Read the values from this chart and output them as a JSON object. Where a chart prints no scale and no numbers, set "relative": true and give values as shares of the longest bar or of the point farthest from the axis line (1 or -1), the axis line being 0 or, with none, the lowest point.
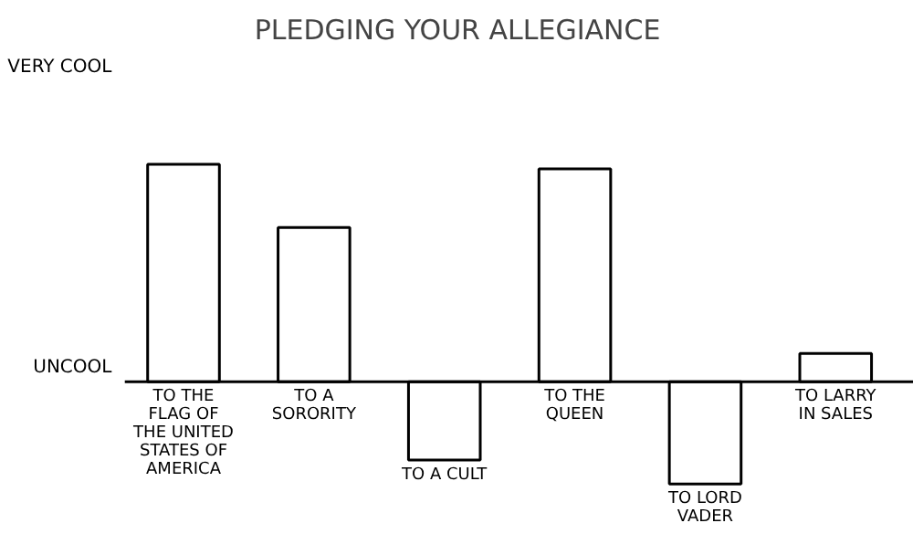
{
  "chart_data": {
    "type": "bar",
    "title": "PLEDGING YOUR ALLEGIANCE",
    "relative": true,
    "categories": [
      "TO THE FLAG OF THE UNITED STATES OF AMERICA",
      "TO A SORORITY",
      "TO A CULT",
      "TO THE QUEEN",
      "TO LORD VADER",
      "TO LARRY IN SALES"
    ],
    "values": [
      1,
      0.71,
      -0.36,
      0.98,
      -0.47,
      0.13
    ],
    "color": "#ffffff",
    "annotations": [
      "VERY COOL",
      "UNCOOL"
    ]
  }
}
